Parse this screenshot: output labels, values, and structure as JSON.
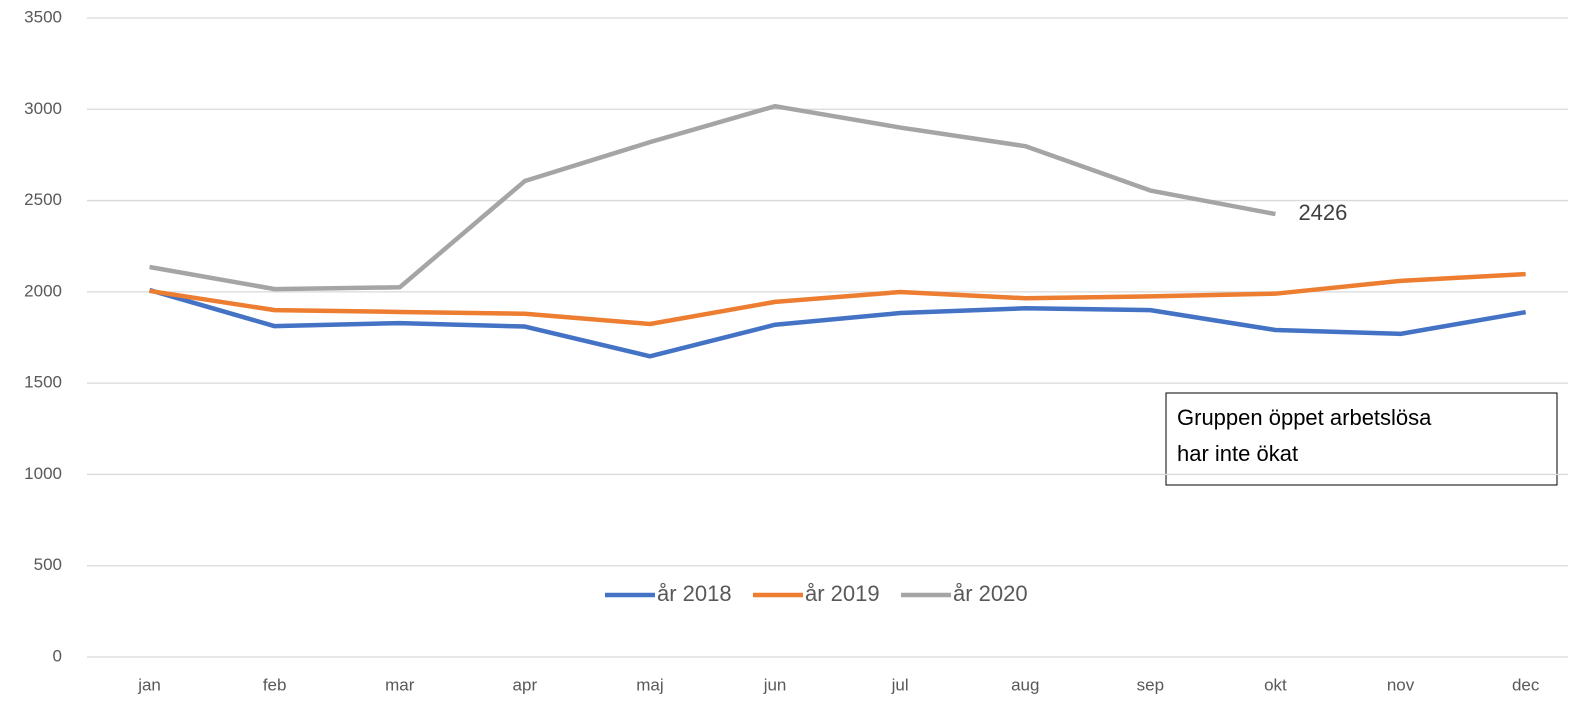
{
  "chart_data": {
    "type": "line",
    "categories": [
      "jan",
      "feb",
      "mar",
      "apr",
      "maj",
      "jun",
      "jul",
      "aug",
      "sep",
      "okt",
      "nov",
      "dec"
    ],
    "series": [
      {
        "name": "år 2018",
        "color": "#4472c4",
        "values": [
          2010,
          1812,
          1829,
          1810,
          1647,
          1820,
          1884,
          1910,
          1900,
          1791,
          1770,
          1889
        ]
      },
      {
        "name": "år 2019",
        "color": "#ed7d31",
        "values": [
          2005,
          1900,
          1890,
          1880,
          1824,
          1945,
          1999,
          1965,
          1975,
          1990,
          2060,
          2097
        ]
      },
      {
        "name": "år 2020",
        "color": "#a5a5a5",
        "values": [
          2136,
          2015,
          2025,
          2607,
          2820,
          3017,
          2900,
          2798,
          2555,
          2426,
          null,
          null
        ]
      }
    ],
    "ylim": [
      0,
      3500
    ],
    "yticks": [
      0,
      500,
      1000,
      1500,
      2000,
      2500,
      3000,
      3500
    ],
    "grid": true,
    "legend": "bottom",
    "data_label": {
      "series": 2,
      "index": 9
    },
    "annotation": [
      "Gruppen öppet arbetslösa",
      "har inte ökat"
    ]
  }
}
